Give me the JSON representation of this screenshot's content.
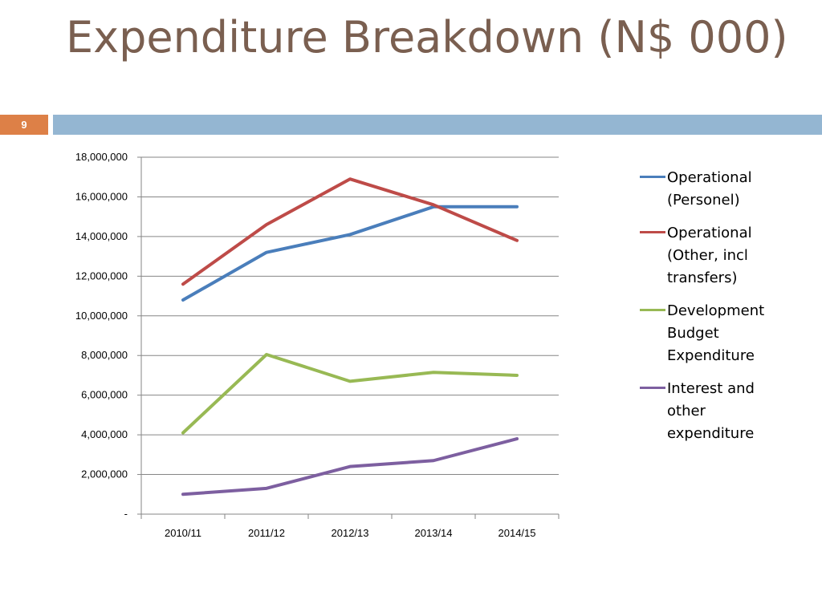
{
  "slide": {
    "title": "Expenditure Breakdown (N$ 000)",
    "number": "9"
  },
  "colors": {
    "title": "#7a5f50",
    "accent_bar": "#94b6d2",
    "number_box": "#dd8047"
  },
  "chart_data": {
    "type": "line",
    "categories": [
      "2010/11",
      "2011/12",
      "2012/13",
      "2013/14",
      "2014/15"
    ],
    "ylim": [
      0,
      18000000
    ],
    "yticks": [
      0,
      2000000,
      4000000,
      6000000,
      8000000,
      10000000,
      12000000,
      14000000,
      16000000,
      18000000
    ],
    "ytick_labels": [
      "-",
      "2,000,000",
      "4,000,000",
      "6,000,000",
      "8,000,000",
      "10,000,000",
      "12,000,000",
      "14,000,000",
      "16,000,000",
      "18,000,000"
    ],
    "grid": true,
    "legend_position": "right",
    "series": [
      {
        "name": "Operational (Personel)",
        "color": "#4a7ebb",
        "values": [
          10800000,
          13200000,
          14100000,
          15500000,
          15500000
        ]
      },
      {
        "name": "Operational (Other, incl transfers)",
        "color": "#be4b48",
        "values": [
          11600000,
          14600000,
          16900000,
          15600000,
          13800000
        ]
      },
      {
        "name": "Development Budget Expenditure",
        "color": "#98b954",
        "values": [
          4100000,
          8050000,
          6700000,
          7150000,
          7000000
        ]
      },
      {
        "name": "Interest and other expenditure",
        "color": "#7d5fa0",
        "values": [
          1000000,
          1300000,
          2400000,
          2700000,
          3800000
        ]
      }
    ]
  }
}
